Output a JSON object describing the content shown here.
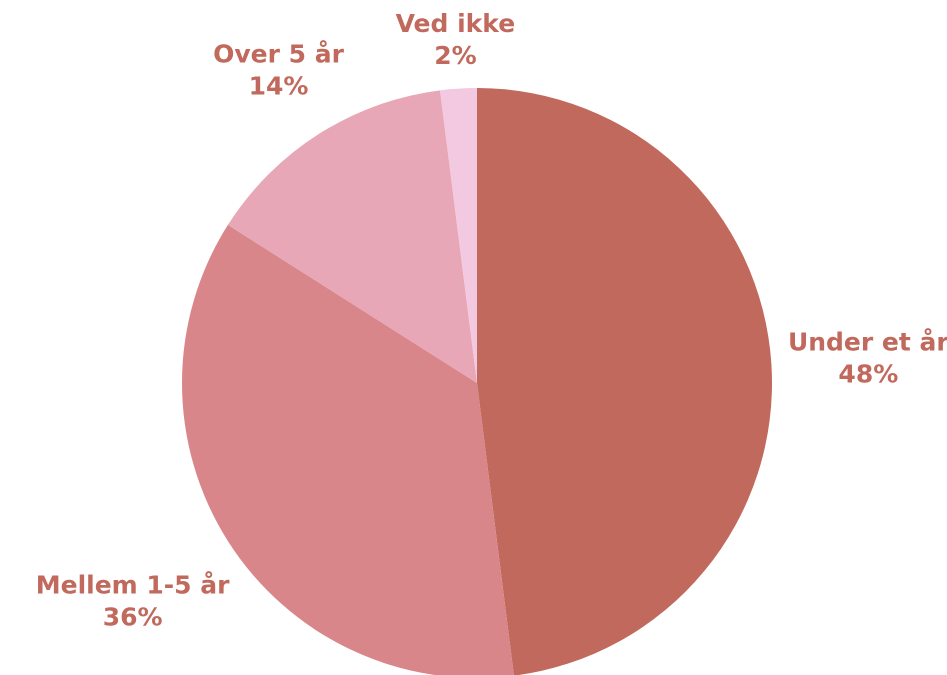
{
  "chart_data": {
    "type": "pie",
    "categories": [
      "Under et år",
      "Mellem 1-5 år",
      "Over 5 år",
      "Ved ikke"
    ],
    "values": [
      48,
      36,
      14,
      2
    ],
    "value_labels": [
      "48%",
      "36%",
      "14%",
      "2%"
    ],
    "colors": [
      "#c0695c",
      "#d8868a",
      "#e8a7b7",
      "#f2c9e0"
    ],
    "label_color": "#c0695c"
  }
}
